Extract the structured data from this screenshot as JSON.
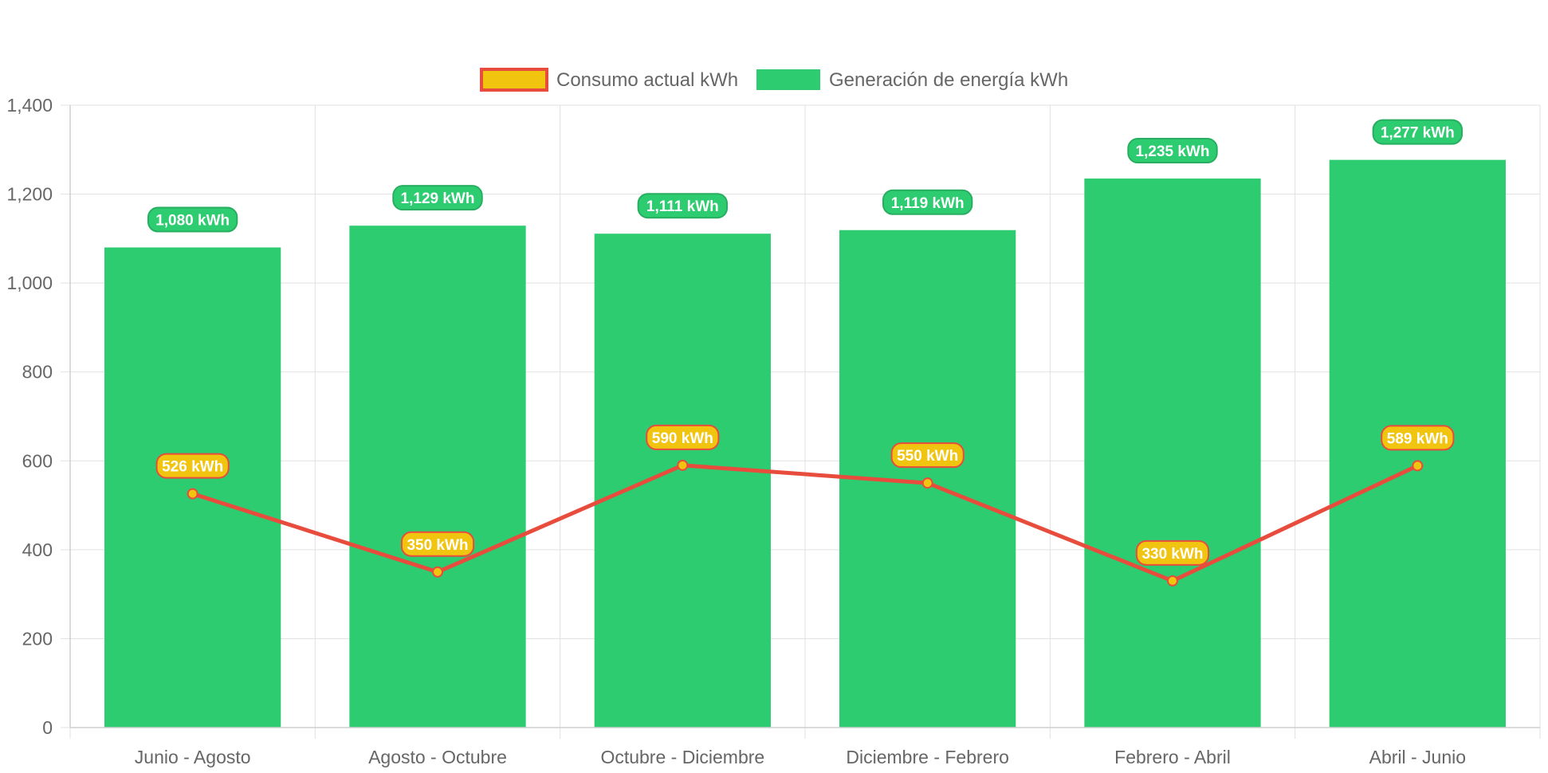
{
  "chart_data": {
    "type": "bar",
    "categories": [
      "Junio - Agosto",
      "Agosto - Octubre",
      "Octubre - Diciembre",
      "Diciembre - Febrero",
      "Febrero - Abril",
      "Abril - Junio"
    ],
    "series": [
      {
        "name": "Consumo actual kWh",
        "type": "line",
        "values": [
          526,
          350,
          590,
          550,
          330,
          589
        ],
        "data_labels": [
          "526 kWh",
          "350 kWh",
          "590 kWh",
          "550 kWh",
          "330 kWh",
          "589 kWh"
        ],
        "color": "#e74c3c",
        "fill_color": "#f1c40f"
      },
      {
        "name": "Generación de energía kWh",
        "type": "bar",
        "values": [
          1080,
          1129,
          1111,
          1119,
          1235,
          1277
        ],
        "data_labels": [
          "1,080 kWh",
          "1,129 kWh",
          "1,111 kWh",
          "1,119 kWh",
          "1,235 kWh",
          "1,277 kWh"
        ],
        "color": "#2ecc71",
        "border_color": "#27ae60"
      }
    ],
    "y_ticks": [
      "0",
      "200",
      "400",
      "600",
      "800",
      "1,000",
      "1,200",
      "1,400"
    ],
    "ylim": [
      0,
      1400
    ],
    "grid": true,
    "legend_position": "top"
  }
}
